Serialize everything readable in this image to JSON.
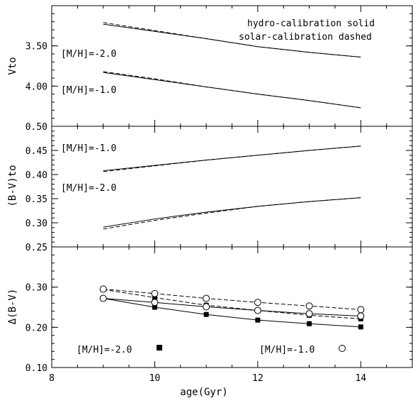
{
  "chart_data": [
    {
      "type": "line",
      "ylabel": "Vto",
      "ylim": [
        4.5,
        3.0
      ],
      "y_inverted": true,
      "yticks": [
        "3.50",
        "4.00"
      ],
      "ytick_values": [
        3.5,
        4.0
      ],
      "annotations": {
        "legend_line1": "hydro-calibration solid",
        "legend_line2": "solar-calibration dashed",
        "label_a": "[M/H]=-2.0",
        "label_b": "[M/H]=-1.0"
      },
      "series": [
        {
          "metallicity": "-2.0",
          "calibration": "hydro",
          "style": "solid",
          "x": [
            9,
            10,
            11,
            12,
            13,
            14
          ],
          "y": [
            3.23,
            3.32,
            3.41,
            3.51,
            3.58,
            3.64
          ]
        },
        {
          "metallicity": "-2.0",
          "calibration": "solar",
          "style": "dashed",
          "x": [
            9,
            10,
            11,
            12,
            13,
            14
          ],
          "y": [
            3.21,
            3.31,
            3.41,
            3.51,
            3.58,
            3.64
          ]
        },
        {
          "metallicity": "-1.0",
          "calibration": "hydro",
          "style": "solid",
          "x": [
            9,
            10,
            11,
            12,
            13,
            14
          ],
          "y": [
            3.83,
            3.92,
            4.01,
            4.1,
            4.18,
            4.27
          ]
        },
        {
          "metallicity": "-1.0",
          "calibration": "solar",
          "style": "dashed",
          "x": [
            9,
            10,
            11,
            12,
            13,
            14
          ],
          "y": [
            3.82,
            3.91,
            4.01,
            4.1,
            4.18,
            4.27
          ]
        }
      ]
    },
    {
      "type": "line",
      "ylabel": "(B-V)to",
      "ylim": [
        0.25,
        0.5
      ],
      "yticks": [
        "0.50",
        "0.45",
        "0.40",
        "0.35",
        "0.30",
        "0.25"
      ],
      "ytick_values": [
        0.5,
        0.45,
        0.4,
        0.35,
        0.3,
        0.25
      ],
      "annotations": {
        "label_a": "[M/H]=-1.0",
        "label_b": "[M/H]=-2.0"
      },
      "series": [
        {
          "metallicity": "-1.0",
          "calibration": "hydro",
          "style": "solid",
          "x": [
            9,
            10,
            11,
            12,
            13,
            14
          ],
          "y": [
            0.408,
            0.419,
            0.43,
            0.44,
            0.45,
            0.459
          ]
        },
        {
          "metallicity": "-1.0",
          "calibration": "solar",
          "style": "dashed",
          "x": [
            9,
            10,
            11,
            12,
            13,
            14
          ],
          "y": [
            0.406,
            0.418,
            0.43,
            0.44,
            0.45,
            0.459
          ]
        },
        {
          "metallicity": "-2.0",
          "calibration": "hydro",
          "style": "solid",
          "x": [
            9,
            10,
            11,
            12,
            13,
            14
          ],
          "y": [
            0.291,
            0.308,
            0.322,
            0.334,
            0.344,
            0.352
          ]
        },
        {
          "metallicity": "-2.0",
          "calibration": "solar",
          "style": "dashed",
          "x": [
            9,
            10,
            11,
            12,
            13,
            14
          ],
          "y": [
            0.287,
            0.305,
            0.32,
            0.334,
            0.344,
            0.352
          ]
        }
      ]
    },
    {
      "type": "line",
      "ylabel": "Δ(B-V)",
      "xlabel": "age(Gyr)",
      "xlim": [
        8,
        15
      ],
      "xticks": [
        "8",
        "10",
        "12",
        "14"
      ],
      "xtick_values": [
        8,
        10,
        12,
        14
      ],
      "ylim": [
        0.1,
        0.4
      ],
      "yticks": [
        "0.30",
        "0.20",
        "0.10"
      ],
      "ytick_values": [
        0.3,
        0.2,
        0.1
      ],
      "annotations": {
        "label_a": "[M/H]=-2.0",
        "label_b": "[M/H]=-1.0"
      },
      "legend": {
        "filled_square": "[M/H]=-2.0",
        "open_circle": "[M/H]=-1.0"
      },
      "series": [
        {
          "metallicity": "-2.0",
          "calibration": "hydro",
          "marker": "filled-square",
          "style": "solid",
          "x": [
            9,
            10,
            11,
            12,
            13,
            14
          ],
          "y": [
            0.272,
            0.25,
            0.232,
            0.218,
            0.209,
            0.201
          ]
        },
        {
          "metallicity": "-2.0",
          "calibration": "solar",
          "marker": "filled-square",
          "style": "dashed",
          "x": [
            9,
            10,
            11,
            12,
            13,
            14
          ],
          "y": [
            0.294,
            0.274,
            0.255,
            0.242,
            0.23,
            0.221
          ]
        },
        {
          "metallicity": "-1.0",
          "calibration": "hydro",
          "marker": "open-circle",
          "style": "solid",
          "x": [
            9,
            10,
            11,
            12,
            13,
            14
          ],
          "y": [
            0.272,
            0.262,
            0.251,
            0.242,
            0.234,
            0.228
          ]
        },
        {
          "metallicity": "-1.0",
          "calibration": "solar",
          "marker": "open-circle",
          "style": "dashed",
          "x": [
            9,
            10,
            11,
            12,
            13,
            14
          ],
          "y": [
            0.295,
            0.284,
            0.272,
            0.262,
            0.253,
            0.244
          ]
        }
      ]
    }
  ]
}
